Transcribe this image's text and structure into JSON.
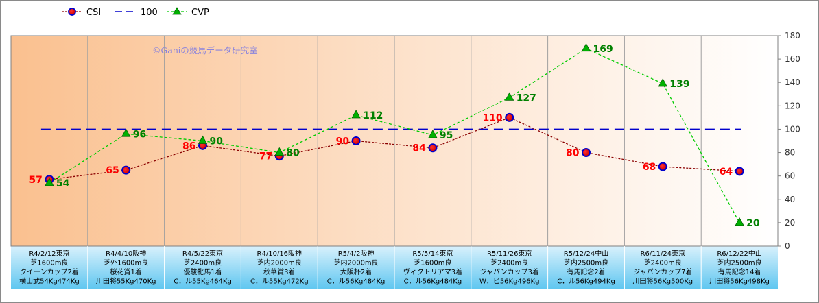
{
  "chart_data": {
    "type": "line",
    "watermark": "©Ganiの競馬データ研究室",
    "categories": [
      [
        "R4/2/12東京",
        "芝1600m良",
        "クイーンカップ2着",
        "横山武54Kg474Kg"
      ],
      [
        "R4/4/10阪神",
        "芝外1600m良",
        "桜花賞1着",
        "川田将55Kg470Kg"
      ],
      [
        "R4/5/22東京",
        "芝2400m良",
        "優駿牝馬1着",
        "C．ル55Kg464Kg"
      ],
      [
        "R4/10/16阪神",
        "芝内2000m良",
        "秋華賞3着",
        "C．ル55Kg472Kg"
      ],
      [
        "R5/4/2阪神",
        "芝内2000m良",
        "大阪杯2着",
        "C．ル56Kg484Kg"
      ],
      [
        "R5/5/14東京",
        "芝1600m良",
        "ヴィクトリアマ3着",
        "C．ル56Kg484Kg"
      ],
      [
        "R5/11/26東京",
        "芝2400m良",
        "ジャパンカップ3着",
        "W．ビ56Kg496Kg"
      ],
      [
        "R5/12/24中山",
        "芝内2500m良",
        "有馬記念2着",
        "C．ル56Kg494Kg"
      ],
      [
        "R6/11/24東京",
        "芝2400m良",
        "ジャパンカップ7着",
        "川田将56Kg500Kg"
      ],
      [
        "R6/12/22中山",
        "芝内2500m良",
        "有馬記念14着",
        "川田将56Kg498Kg"
      ]
    ],
    "series": [
      {
        "name": "CSI",
        "values": [
          57,
          65,
          86,
          77,
          90,
          84,
          110,
          80,
          68,
          64
        ],
        "color": "#8b0000",
        "label_color": "#ff0000",
        "marker": "circle"
      },
      {
        "name": "100",
        "values": [
          100,
          100,
          100,
          100,
          100,
          100,
          100,
          100,
          100,
          100
        ],
        "color": "#0000cc",
        "marker": "none"
      },
      {
        "name": "CVP",
        "values": [
          54,
          96,
          90,
          80,
          112,
          95,
          127,
          169,
          139,
          20
        ],
        "color": "#00cc00",
        "label_color": "#008000",
        "marker": "triangle"
      }
    ],
    "ylim": [
      0,
      180
    ],
    "yticks": [
      0,
      20,
      40,
      60,
      80,
      100,
      120,
      140,
      160,
      180
    ],
    "y_axis_side": "right",
    "legend_position": "top-left",
    "grid": "vertical"
  }
}
